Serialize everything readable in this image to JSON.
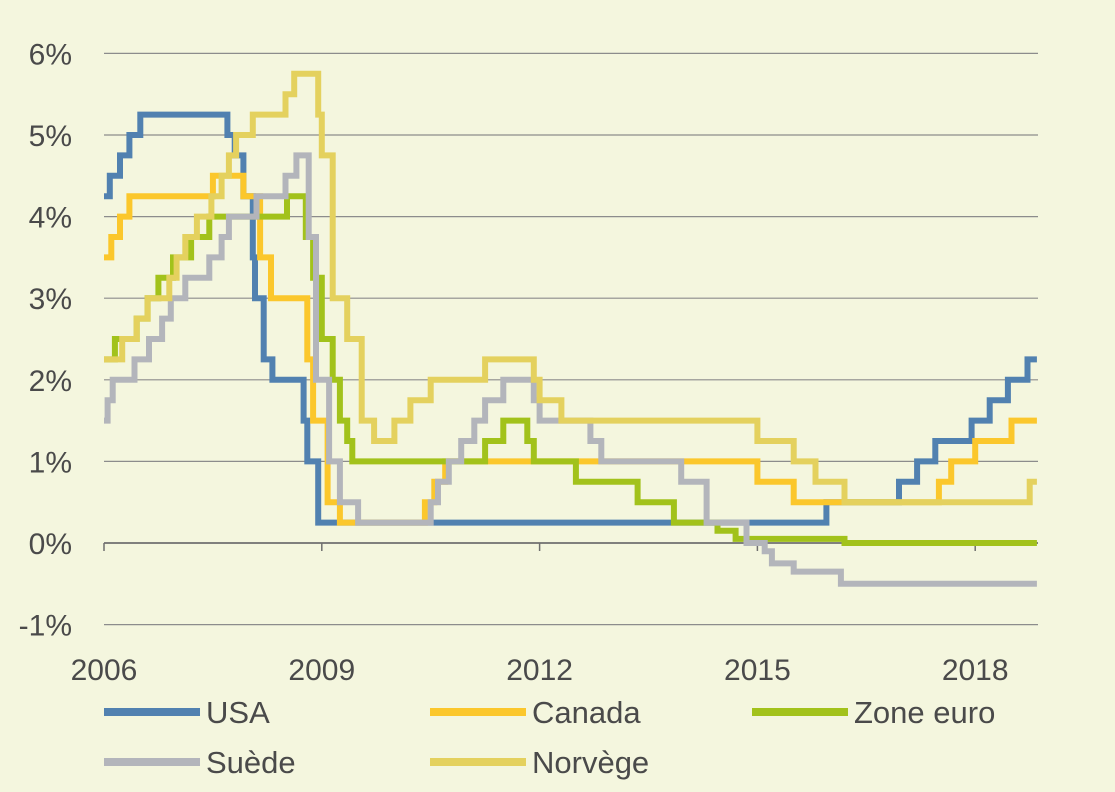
{
  "chart_data": {
    "type": "line",
    "title": "",
    "xlabel": "",
    "ylabel": "",
    "xlim": [
      2006,
      2018.85
    ],
    "ylim": [
      -1,
      6
    ],
    "grid": "horizontal",
    "legend_position": "bottom",
    "x_tick_labels": [
      {
        "x": 2006,
        "label": "2006"
      },
      {
        "x": 2009,
        "label": "2009"
      },
      {
        "x": 2012,
        "label": "2012"
      },
      {
        "x": 2015,
        "label": "2015"
      },
      {
        "x": 2018,
        "label": "2018"
      }
    ],
    "y_tick_labels": [
      {
        "y": 6,
        "label": "6%"
      },
      {
        "y": 5,
        "label": "5%"
      },
      {
        "y": 4,
        "label": "4%"
      },
      {
        "y": 3,
        "label": "3%"
      },
      {
        "y": 2,
        "label": "2%"
      },
      {
        "y": 1,
        "label": "1%"
      },
      {
        "y": 0,
        "label": "0%"
      },
      {
        "y": -1,
        "label": "-1%"
      }
    ],
    "series": [
      {
        "name": "USA",
        "color": "#5181b0",
        "points": [
          [
            2006.0,
            4.25
          ],
          [
            2006.08,
            4.5
          ],
          [
            2006.22,
            4.75
          ],
          [
            2006.35,
            5.0
          ],
          [
            2006.5,
            5.25
          ],
          [
            2007.7,
            5.0
          ],
          [
            2007.8,
            4.75
          ],
          [
            2007.92,
            4.25
          ],
          [
            2008.05,
            3.5
          ],
          [
            2008.08,
            3.0
          ],
          [
            2008.2,
            2.25
          ],
          [
            2008.32,
            2.0
          ],
          [
            2008.75,
            1.5
          ],
          [
            2008.8,
            1.0
          ],
          [
            2008.95,
            0.25
          ],
          [
            2015.95,
            0.5
          ],
          [
            2016.95,
            0.75
          ],
          [
            2017.2,
            1.0
          ],
          [
            2017.45,
            1.25
          ],
          [
            2017.95,
            1.5
          ],
          [
            2018.2,
            1.75
          ],
          [
            2018.45,
            2.0
          ],
          [
            2018.72,
            2.25
          ],
          [
            2018.85,
            2.25
          ]
        ]
      },
      {
        "name": "Canada",
        "color": "#fbc72c",
        "points": [
          [
            2006.0,
            3.5
          ],
          [
            2006.1,
            3.75
          ],
          [
            2006.22,
            4.0
          ],
          [
            2006.35,
            4.25
          ],
          [
            2007.5,
            4.5
          ],
          [
            2007.92,
            4.25
          ],
          [
            2008.15,
            3.5
          ],
          [
            2008.3,
            3.0
          ],
          [
            2008.8,
            2.25
          ],
          [
            2008.88,
            1.5
          ],
          [
            2009.08,
            0.5
          ],
          [
            2009.25,
            0.25
          ],
          [
            2010.42,
            0.5
          ],
          [
            2010.55,
            0.75
          ],
          [
            2010.7,
            1.0
          ],
          [
            2015.0,
            0.75
          ],
          [
            2015.5,
            0.5
          ],
          [
            2017.5,
            0.75
          ],
          [
            2017.67,
            1.0
          ],
          [
            2018.0,
            1.25
          ],
          [
            2018.5,
            1.5
          ],
          [
            2018.85,
            1.5
          ]
        ]
      },
      {
        "name": "Zone euro",
        "color": "#a2c21b",
        "points": [
          [
            2006.0,
            2.25
          ],
          [
            2006.15,
            2.5
          ],
          [
            2006.45,
            2.75
          ],
          [
            2006.6,
            3.0
          ],
          [
            2006.75,
            3.25
          ],
          [
            2006.95,
            3.5
          ],
          [
            2007.2,
            3.75
          ],
          [
            2007.45,
            4.0
          ],
          [
            2008.52,
            4.25
          ],
          [
            2008.78,
            3.75
          ],
          [
            2008.88,
            3.25
          ],
          [
            2009.0,
            2.5
          ],
          [
            2009.15,
            2.0
          ],
          [
            2009.25,
            1.5
          ],
          [
            2009.35,
            1.25
          ],
          [
            2009.42,
            1.0
          ],
          [
            2011.25,
            1.25
          ],
          [
            2011.5,
            1.5
          ],
          [
            2011.83,
            1.25
          ],
          [
            2011.92,
            1.0
          ],
          [
            2012.5,
            0.75
          ],
          [
            2013.35,
            0.5
          ],
          [
            2013.85,
            0.25
          ],
          [
            2014.45,
            0.15
          ],
          [
            2014.7,
            0.05
          ],
          [
            2016.2,
            0.0
          ],
          [
            2018.85,
            0.0
          ]
        ]
      },
      {
        "name": "Suède",
        "color": "#b3b5bb",
        "points": [
          [
            2006.0,
            1.5
          ],
          [
            2006.05,
            1.75
          ],
          [
            2006.12,
            2.0
          ],
          [
            2006.42,
            2.25
          ],
          [
            2006.62,
            2.5
          ],
          [
            2006.8,
            2.75
          ],
          [
            2006.92,
            3.0
          ],
          [
            2007.12,
            3.25
          ],
          [
            2007.45,
            3.5
          ],
          [
            2007.62,
            3.75
          ],
          [
            2007.72,
            4.0
          ],
          [
            2008.1,
            4.25
          ],
          [
            2008.5,
            4.5
          ],
          [
            2008.65,
            4.75
          ],
          [
            2008.82,
            3.75
          ],
          [
            2008.92,
            2.0
          ],
          [
            2009.1,
            1.0
          ],
          [
            2009.25,
            0.5
          ],
          [
            2009.5,
            0.25
          ],
          [
            2010.5,
            0.5
          ],
          [
            2010.6,
            0.75
          ],
          [
            2010.75,
            1.0
          ],
          [
            2010.92,
            1.25
          ],
          [
            2011.1,
            1.5
          ],
          [
            2011.25,
            1.75
          ],
          [
            2011.5,
            2.0
          ],
          [
            2011.92,
            1.75
          ],
          [
            2012.0,
            1.5
          ],
          [
            2012.7,
            1.25
          ],
          [
            2012.85,
            1.0
          ],
          [
            2013.95,
            0.75
          ],
          [
            2014.3,
            0.25
          ],
          [
            2014.85,
            0.0
          ],
          [
            2015.1,
            -0.1
          ],
          [
            2015.2,
            -0.25
          ],
          [
            2015.5,
            -0.35
          ],
          [
            2016.15,
            -0.5
          ],
          [
            2018.85,
            -0.5
          ]
        ]
      },
      {
        "name": "Norvège",
        "color": "#e4d15e",
        "points": [
          [
            2006.0,
            2.25
          ],
          [
            2006.25,
            2.5
          ],
          [
            2006.45,
            2.75
          ],
          [
            2006.6,
            3.0
          ],
          [
            2006.9,
            3.25
          ],
          [
            2007.0,
            3.5
          ],
          [
            2007.12,
            3.75
          ],
          [
            2007.28,
            4.0
          ],
          [
            2007.48,
            4.25
          ],
          [
            2007.62,
            4.5
          ],
          [
            2007.72,
            4.75
          ],
          [
            2007.82,
            5.0
          ],
          [
            2008.05,
            5.25
          ],
          [
            2008.5,
            5.5
          ],
          [
            2008.62,
            5.75
          ],
          [
            2008.95,
            5.25
          ],
          [
            2009.0,
            4.75
          ],
          [
            2009.15,
            3.0
          ],
          [
            2009.35,
            2.5
          ],
          [
            2009.55,
            1.5
          ],
          [
            2009.72,
            1.25
          ],
          [
            2010.0,
            1.5
          ],
          [
            2010.22,
            1.75
          ],
          [
            2010.5,
            2.0
          ],
          [
            2011.25,
            2.25
          ],
          [
            2011.92,
            2.0
          ],
          [
            2012.0,
            1.75
          ],
          [
            2012.3,
            1.5
          ],
          [
            2015.0,
            1.25
          ],
          [
            2015.5,
            1.0
          ],
          [
            2015.8,
            0.75
          ],
          [
            2016.2,
            0.5
          ],
          [
            2018.75,
            0.75
          ],
          [
            2018.85,
            0.75
          ]
        ]
      }
    ]
  }
}
